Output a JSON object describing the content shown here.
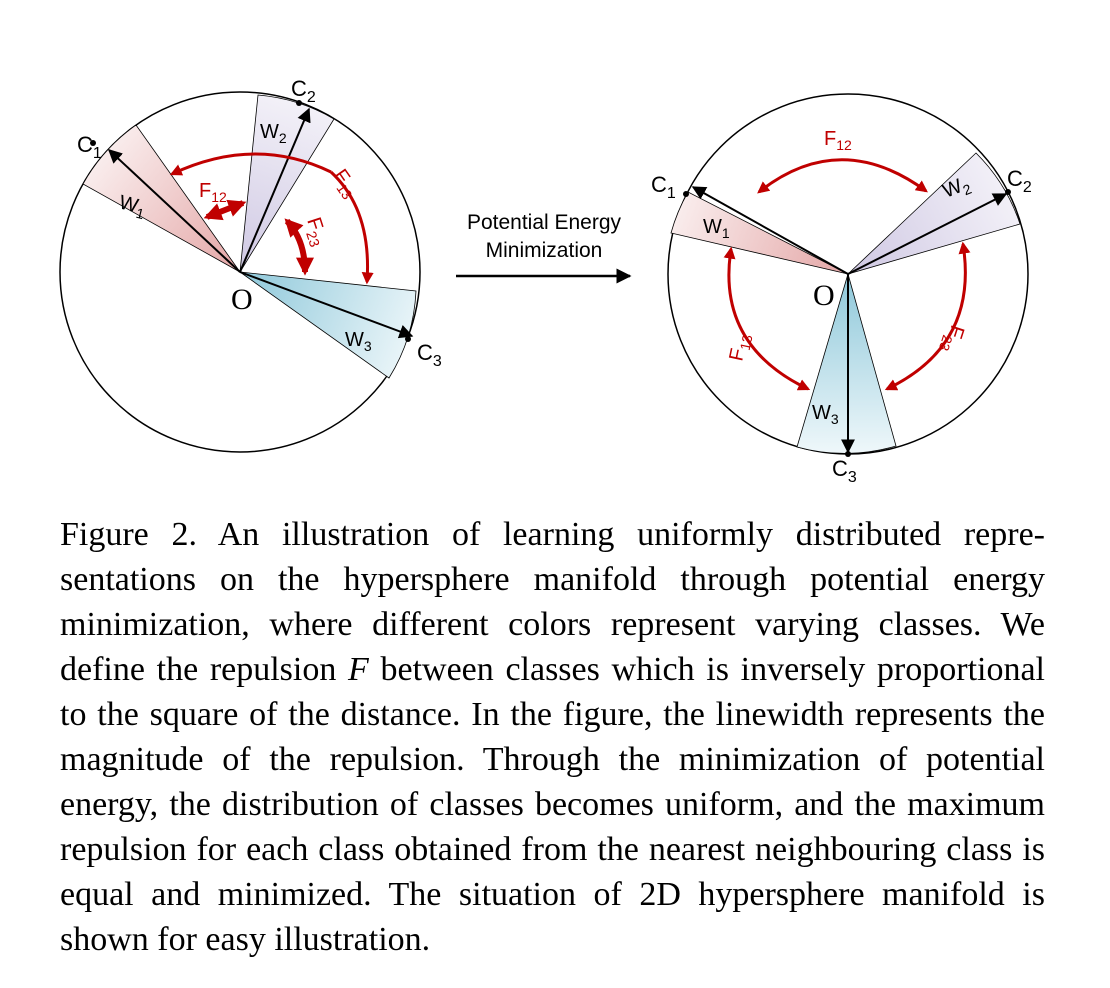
{
  "figure": {
    "arrow_label_line1": "Potential Energy",
    "arrow_label_line2": "Minimization",
    "left": {
      "origin": "O",
      "c1": "C",
      "c1_sub": "1",
      "c2": "C",
      "c2_sub": "2",
      "c3": "C",
      "c3_sub": "3",
      "w1": "W",
      "w1_sub": "1",
      "w2": "W",
      "w2_sub": "2",
      "w3": "W",
      "w3_sub": "3",
      "f12": "F",
      "f12_sub": "12",
      "f13": "F",
      "f13_sub": "13",
      "f23": "F",
      "f23_sub": "23"
    },
    "right": {
      "origin": "O",
      "c1": "C",
      "c1_sub": "1",
      "c2": "C",
      "c2_sub": "2",
      "c3": "C",
      "c3_sub": "3",
      "w1": "W",
      "w1_sub": "1",
      "w2": "W",
      "w2_sub": "2",
      "w3": "W",
      "w3_sub": "3",
      "f12": "F",
      "f12_sub": "12",
      "f13": "F",
      "f13_sub": "13",
      "f23": "F",
      "f23_sub": "23"
    },
    "colors": {
      "force_red": "#c00000",
      "class1_pink": "#e8b4b4",
      "class2_lavender": "#d9d4ea",
      "class3_blue": "#a9d4e2"
    }
  },
  "caption": {
    "p1": "Figure 2. An illustration of learning uniformly distributed repre­sentations on the hypersphere manifold through potential ener­gy minimization, where different colors represent varying classes. We define the repulsion ",
    "f_symbol": "F",
    "p2": " between classes which is inversely pro­portional to the square of the distance. In the figure, the linewidth represents the magnitude of the repulsion. Through the minimiza­tion of potential energy, the distribution of classes becomes uni­form, and the maximum repulsion for each class obtained from the nearest neighbouring class is equal and minimized. The situation of 2D hypersphere manifold is shown for easy illustration."
  }
}
